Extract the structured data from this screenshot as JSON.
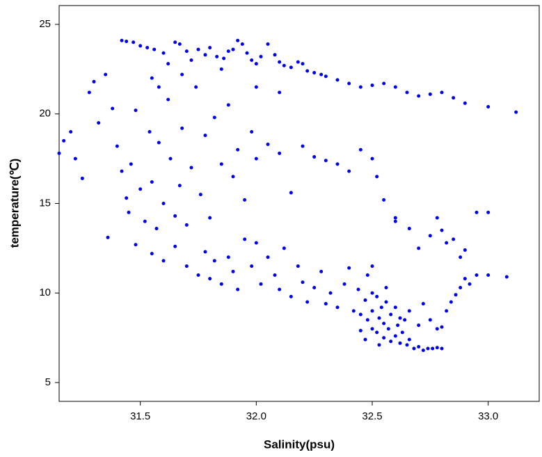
{
  "chart_data": {
    "type": "scatter",
    "x_label": "Salinity(psu)",
    "y_label": "temperature(℃)",
    "xlim": [
      31.15,
      33.22
    ],
    "ylim": [
      3.95,
      26.05
    ],
    "xticks": [
      31.5,
      {
        "value": 32,
        "label": "32.0"
      },
      32.5,
      {
        "value": 33,
        "label": "33.0"
      }
    ],
    "yticks": [
      5,
      10,
      15,
      20,
      25
    ],
    "color": "#0000ee",
    "x": [
      31.42,
      31.44,
      31.47,
      31.5,
      31.53,
      31.56,
      31.6,
      31.62,
      31.65,
      31.67,
      31.7,
      31.72,
      31.75,
      31.78,
      31.8,
      31.83,
      31.86,
      31.88,
      31.9,
      31.92,
      31.94,
      31.96,
      31.98,
      32.0,
      32.02,
      32.05,
      32.08,
      32.1,
      32.12,
      32.15,
      32.18,
      32.2,
      32.22,
      32.25,
      32.28,
      32.3,
      32.35,
      32.4,
      32.45,
      32.5,
      32.55,
      32.6,
      32.65,
      32.7,
      32.75,
      32.8,
      32.85,
      32.9,
      33.0,
      33.12,
      31.85,
      32.0,
      32.1,
      31.58,
      31.55,
      31.68,
      31.15,
      31.17,
      31.2,
      31.22,
      31.25,
      31.28,
      31.3,
      31.32,
      31.35,
      31.38,
      31.4,
      31.42,
      31.44,
      31.45,
      31.46,
      31.48,
      31.5,
      31.52,
      31.54,
      31.55,
      31.57,
      31.58,
      31.6,
      31.62,
      31.63,
      31.65,
      31.67,
      31.68,
      31.7,
      31.72,
      31.74,
      31.76,
      31.78,
      31.8,
      31.82,
      31.85,
      31.88,
      31.9,
      31.92,
      31.95,
      31.98,
      32.0,
      32.05,
      32.1,
      32.15,
      32.2,
      32.25,
      32.3,
      32.35,
      32.4,
      32.45,
      32.5,
      32.52,
      32.55,
      32.6,
      32.66,
      31.36,
      31.48,
      31.55,
      31.6,
      31.65,
      31.7,
      31.75,
      31.78,
      31.8,
      31.82,
      31.85,
      31.88,
      31.9,
      31.92,
      31.95,
      31.98,
      32.0,
      32.02,
      32.05,
      32.08,
      32.1,
      32.12,
      32.15,
      32.18,
      32.2,
      32.22,
      32.25,
      32.28,
      32.3,
      32.32,
      32.35,
      32.38,
      32.4,
      32.42,
      32.44,
      32.45,
      32.47,
      32.48,
      32.5,
      32.5,
      32.52,
      32.52,
      32.53,
      32.54,
      32.55,
      32.55,
      32.56,
      32.57,
      32.58,
      32.58,
      32.6,
      32.6,
      32.61,
      32.62,
      32.63,
      32.64,
      32.65,
      32.66,
      32.68,
      32.7,
      32.72,
      32.74,
      32.76,
      32.78,
      32.8,
      32.5,
      32.45,
      32.47,
      32.53,
      32.56,
      32.62,
      32.66,
      32.7,
      32.72,
      32.75,
      32.78,
      32.8,
      32.82,
      32.84,
      32.86,
      32.88,
      32.9,
      32.92,
      32.95,
      33.0,
      33.08,
      32.88,
      32.9,
      32.85,
      32.82,
      32.8,
      32.78,
      32.95,
      33.0,
      32.7,
      32.75,
      32.6,
      32.5,
      32.48
    ],
    "y": [
      24.1,
      24.05,
      24.0,
      23.8,
      23.7,
      23.6,
      23.4,
      22.8,
      24.0,
      23.9,
      23.5,
      23.0,
      23.6,
      23.3,
      23.7,
      23.2,
      23.1,
      23.5,
      23.6,
      24.1,
      23.9,
      23.4,
      23.0,
      22.8,
      23.2,
      23.9,
      23.3,
      22.9,
      22.7,
      22.6,
      22.9,
      22.8,
      22.4,
      22.3,
      22.2,
      22.1,
      21.9,
      21.7,
      21.5,
      21.6,
      21.7,
      21.5,
      21.2,
      21.0,
      21.1,
      21.2,
      20.9,
      20.6,
      20.4,
      20.1,
      22.5,
      21.5,
      21.2,
      21.5,
      22.0,
      22.2,
      17.8,
      18.5,
      19.0,
      17.5,
      16.4,
      21.2,
      21.8,
      19.5,
      22.2,
      20.3,
      18.2,
      16.8,
      15.3,
      14.5,
      17.2,
      20.2,
      15.8,
      14.0,
      19.0,
      16.2,
      13.6,
      18.4,
      15.0,
      20.8,
      17.5,
      14.3,
      16.0,
      19.2,
      13.8,
      17.0,
      21.5,
      15.5,
      18.8,
      14.2,
      19.8,
      17.2,
      20.5,
      16.5,
      18.0,
      15.2,
      19.0,
      17.5,
      18.3,
      17.8,
      15.6,
      18.2,
      17.6,
      17.4,
      17.2,
      16.8,
      18.0,
      17.5,
      16.5,
      15.2,
      14.2,
      13.6,
      13.1,
      12.7,
      12.2,
      11.8,
      12.6,
      11.5,
      11.0,
      12.3,
      10.8,
      11.8,
      10.5,
      12.0,
      11.2,
      10.2,
      13.0,
      11.5,
      12.8,
      10.5,
      12.0,
      11.0,
      10.2,
      12.5,
      9.8,
      11.5,
      10.6,
      9.5,
      10.3,
      11.2,
      9.4,
      10.0,
      9.2,
      10.5,
      11.4,
      9.0,
      10.2,
      8.8,
      9.6,
      8.5,
      9.0,
      8.0,
      9.8,
      7.8,
      8.6,
      9.2,
      7.5,
      8.3,
      9.5,
      8.0,
      7.3,
      8.8,
      7.6,
      9.2,
      8.2,
      7.2,
      7.8,
      8.5,
      7.1,
      7.4,
      6.9,
      7.0,
      6.8,
      6.9,
      6.9,
      6.95,
      6.9,
      10.0,
      7.9,
      7.4,
      7.1,
      10.3,
      8.6,
      9.0,
      8.2,
      9.4,
      8.5,
      8.0,
      8.1,
      9.0,
      9.5,
      9.9,
      10.3,
      10.8,
      10.5,
      11.0,
      11.0,
      10.9,
      12.0,
      12.4,
      13.0,
      12.8,
      13.5,
      14.2,
      14.5,
      14.5,
      12.5,
      13.2,
      14.0,
      11.5,
      11.0
    ]
  }
}
